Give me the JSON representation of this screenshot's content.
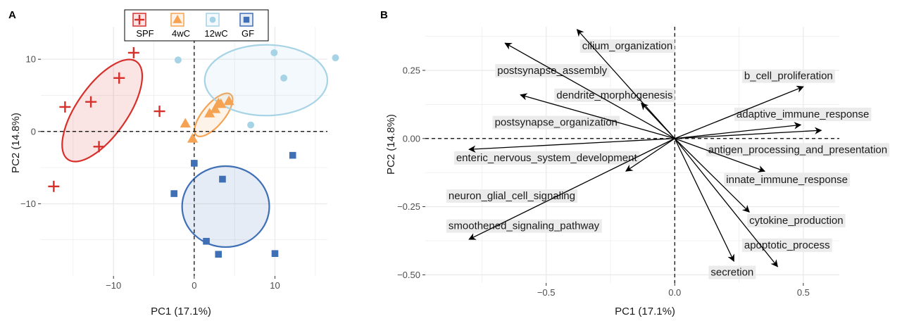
{
  "colors": {
    "SPF": "#d7302b",
    "4wC": "#f5a352",
    "12wC": "#a6d3e6",
    "GF": "#3f6fb5",
    "grid": "#ebebeb",
    "label_bg": "#ebebeb"
  },
  "chart_data": [
    {
      "panel": "A",
      "type": "scatter",
      "xlabel": "PC1 (17.1%)",
      "ylabel": "PC2 (14.8%)",
      "xlim": [
        -19,
        16.5
      ],
      "ylim": [
        -20,
        14.5
      ],
      "xticks": [
        -10,
        0,
        10
      ],
      "yticks": [
        -10,
        0,
        10
      ],
      "tick_labels_x": [
        "−10",
        "0",
        "10"
      ],
      "tick_labels_y": [
        "−10",
        "0",
        "10"
      ],
      "grid": true,
      "legend_position": "top",
      "series": [
        {
          "name": "SPF",
          "marker": "plus",
          "points": [
            [
              -17.4,
              -7.6
            ],
            [
              -16,
              3.4
            ],
            [
              -12.8,
              4.1
            ],
            [
              -11.8,
              -2.1
            ],
            [
              -9.3,
              7.4
            ],
            [
              -7.5,
              10.9
            ],
            [
              -4.3,
              2.8
            ]
          ],
          "ellipse": {
            "cx": -11.4,
            "cy": 2.9,
            "rx": 7.4,
            "ry": 3.5,
            "angle": 55
          }
        },
        {
          "name": "4wC",
          "marker": "triangle",
          "points": [
            [
              -1.1,
              1.1
            ],
            [
              -0.2,
              -1
            ],
            [
              1.9,
              2.5
            ],
            [
              3,
              3.9
            ],
            [
              4.3,
              4.2
            ],
            [
              3.3,
              3.8
            ],
            [
              2.6,
              3.1
            ]
          ],
          "ellipse": {
            "cx": 2.4,
            "cy": 2.3,
            "rx": 3.3,
            "ry": 1.5,
            "angle": 50
          }
        },
        {
          "name": "12wC",
          "marker": "circle",
          "points": [
            [
              -2,
              9.9
            ],
            [
              7,
              0.9
            ],
            [
              9.9,
              10.9
            ],
            [
              11.1,
              7.4
            ],
            [
              17.5,
              10.2
            ]
          ],
          "ellipse": {
            "cx": 8.9,
            "cy": 7.1,
            "rx": 7.6,
            "ry": 4.9,
            "angle": 0
          }
        },
        {
          "name": "GF",
          "marker": "square",
          "points": [
            [
              -2.5,
              -8.6
            ],
            [
              0,
              -4.4
            ],
            [
              1.5,
              -15.2
            ],
            [
              3,
              -17
            ],
            [
              3.5,
              -6.6
            ],
            [
              10,
              -16.9
            ],
            [
              12.2,
              -3.3
            ]
          ],
          "ellipse": {
            "cx": 3.9,
            "cy": -10.4,
            "rx": 5.4,
            "ry": 5.6,
            "angle": 0
          }
        }
      ]
    },
    {
      "panel": "B",
      "type": "biplot",
      "xlabel": "PC1 (17.1%)",
      "ylabel": "PC2 (14.8%)",
      "xlim": [
        -0.97,
        0.64
      ],
      "ylim": [
        -0.53,
        0.41
      ],
      "xticks": [
        -0.5,
        0,
        0.5
      ],
      "yticks": [
        -0.5,
        -0.25,
        0,
        0.25
      ],
      "tick_labels_x": [
        "−0.5",
        "0.0",
        "0.5"
      ],
      "tick_labels_y": [
        "−0.50",
        "−0.25",
        "0.00",
        "0.25"
      ],
      "grid": true,
      "vectors": [
        {
          "name": "cilium_organization",
          "x": -0.38,
          "y": 0.4
        },
        {
          "name": "postsynapse_assembly",
          "x": -0.66,
          "y": 0.35
        },
        {
          "name": "dendrite_morphogenesis",
          "x": -0.6,
          "y": 0.16
        },
        {
          "name": "postsynapse_organization",
          "x": -0.13,
          "y": 0.13
        },
        {
          "name": "enteric_nervous_system_development",
          "x": -0.8,
          "y": -0.04
        },
        {
          "name": "neuron_glial_cell_signaling",
          "x": -0.19,
          "y": -0.12
        },
        {
          "name": "smoothened_signaling_pathway",
          "x": -0.8,
          "y": -0.37
        },
        {
          "name": "b_cell_proliferation",
          "x": 0.5,
          "y": 0.19
        },
        {
          "name": "adaptive_immune_response",
          "x": 0.49,
          "y": 0.05
        },
        {
          "name": "antigen_processing_and_presentation",
          "x": 0.57,
          "y": 0.03
        },
        {
          "name": "innate_immune_response",
          "x": 0.35,
          "y": -0.12
        },
        {
          "name": "cytokine_production",
          "x": 0.29,
          "y": -0.27
        },
        {
          "name": "apoptotic_process",
          "x": 0.4,
          "y": -0.47
        },
        {
          "name": "secretion",
          "x": 0.23,
          "y": -0.45
        }
      ],
      "label_positions": {
        "cilium_organization": [
          -0.36,
          0.34
        ],
        "postsynapse_assembly": [
          -0.69,
          0.25
        ],
        "dendrite_morphogenesis": [
          -0.46,
          0.16
        ],
        "postsynapse_organization": [
          -0.7,
          0.06
        ],
        "enteric_nervous_system_development": [
          -0.85,
          -0.07
        ],
        "neuron_glial_cell_signaling": [
          -0.88,
          -0.21
        ],
        "smoothened_signaling_pathway": [
          -0.88,
          -0.32
        ],
        "b_cell_proliferation": [
          0.27,
          0.23
        ],
        "adaptive_immune_response": [
          0.24,
          0.09
        ],
        "antigen_processing_and_presentation": [
          0.13,
          -0.04
        ],
        "innate_immune_response": [
          0.2,
          -0.15
        ],
        "cytokine_production": [
          0.29,
          -0.3
        ],
        "apoptotic_process": [
          0.27,
          -0.39
        ],
        "secretion": [
          0.14,
          -0.49
        ]
      }
    }
  ],
  "panels": {
    "a_tag": "A",
    "b_tag": "B"
  }
}
